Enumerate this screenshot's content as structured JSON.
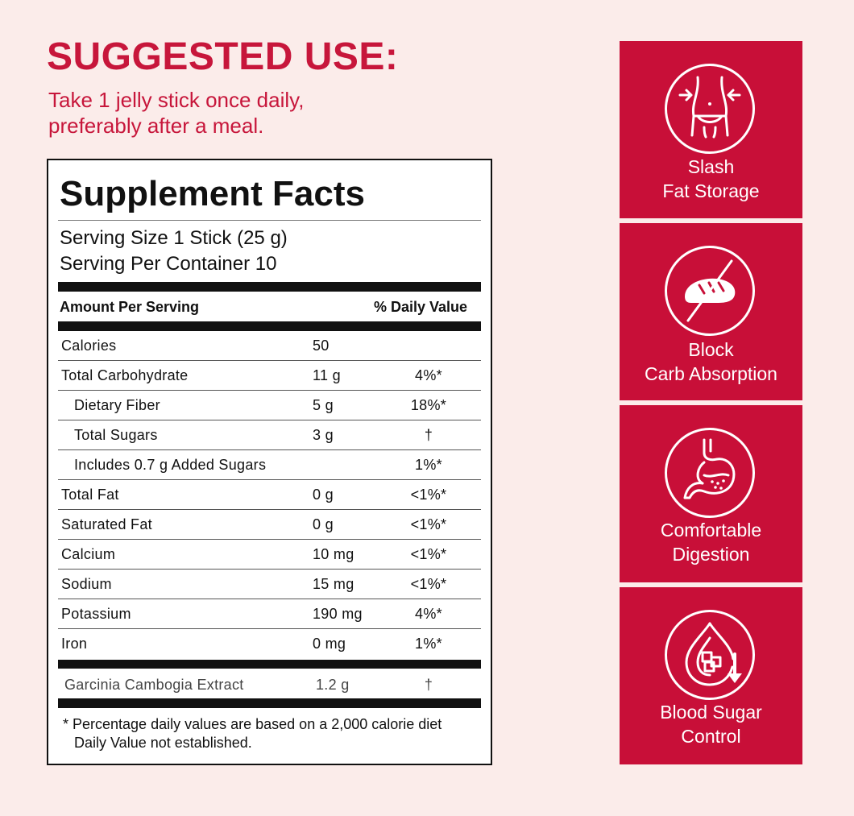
{
  "suggested_use": {
    "title": "SUGGESTED USE:",
    "line1": "Take 1 jelly stick once daily,",
    "line2": "preferably after a meal."
  },
  "facts": {
    "title": "Supplement Facts",
    "serving_size": "Serving Size 1 Stick (25 g)",
    "servings_per_container": "Serving Per Container 10",
    "header_amount": "Amount Per Serving",
    "header_dv": "% Daily Value",
    "rows": [
      {
        "name": "Calories",
        "amount": "50",
        "dv": ""
      },
      {
        "name": "Total Carbohydrate",
        "amount": "11 g",
        "dv": "4%*"
      },
      {
        "name": "Dietary Fiber",
        "amount": "5 g",
        "dv": "18%*"
      },
      {
        "name": "Total Sugars",
        "amount": "3 g",
        "dv": "†"
      },
      {
        "name": "Includes 0.7 g Added Sugars",
        "amount": "",
        "dv": "1%*"
      },
      {
        "name": "Total Fat",
        "amount": "0 g",
        "dv": "<1%*"
      },
      {
        "name": "Saturated Fat",
        "amount": "0 g",
        "dv": "<1%*"
      },
      {
        "name": "Calcium",
        "amount": "10 mg",
        "dv": "<1%*"
      },
      {
        "name": "Sodium",
        "amount": "15 mg",
        "dv": "<1%*"
      },
      {
        "name": "Potassium",
        "amount": "190 mg",
        "dv": "4%*"
      },
      {
        "name": "Iron",
        "amount": "0 mg",
        "dv": "1%*"
      }
    ],
    "extract": {
      "name": "Garcinia Cambogia Extract",
      "amount": "1.2 g",
      "dv": "†"
    },
    "footnote_line1": "* Percentage daily values are based on a 2,000 calorie diet",
    "footnote_line2": "Daily Value not established."
  },
  "benefits": [
    {
      "icon": "waist-slim-icon",
      "line1": "Slash",
      "line2": "Fat Storage"
    },
    {
      "icon": "no-bread-icon",
      "line1": "Block",
      "line2": "Carb Absorption"
    },
    {
      "icon": "stomach-icon",
      "line1": "Comfortable",
      "line2": "Digestion"
    },
    {
      "icon": "blood-sugar-drop-icon",
      "line1": "Blood Sugar",
      "line2": "Control"
    }
  ],
  "colors": {
    "accent": "#c80f38",
    "headline": "#c7163b",
    "background": "#fbecea"
  }
}
